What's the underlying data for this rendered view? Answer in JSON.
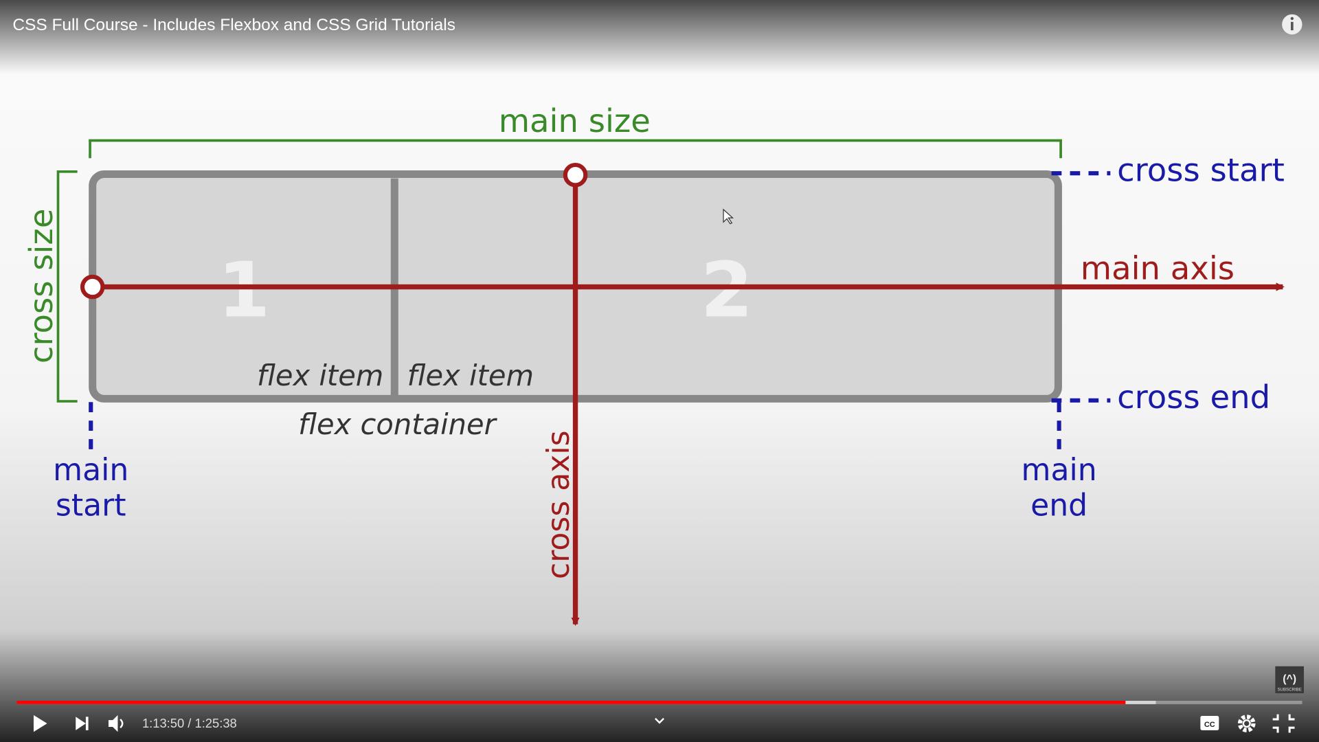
{
  "header": {
    "title": "CSS Full Course - Includes Flexbox and CSS Grid Tutorials"
  },
  "diagram": {
    "main_size": "main size",
    "cross_size": "cross size",
    "cross_start": "cross start",
    "cross_end": "cross end",
    "main_axis": "main axis",
    "cross_axis": "cross axis",
    "item_1": "1",
    "item_2": "2",
    "flex_item": "flex item",
    "flex_container": "flex container",
    "main_start": [
      "main",
      "start"
    ],
    "main_end": [
      "main",
      "end"
    ]
  },
  "watermark": "SUBSCRIBE",
  "controls": {
    "time": "1:13:50 / 1:25:38"
  }
}
